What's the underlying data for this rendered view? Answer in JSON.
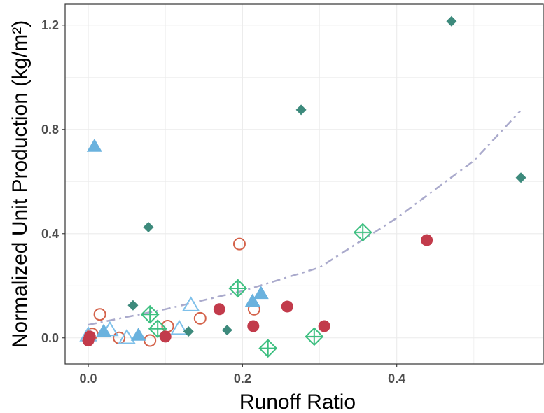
{
  "chart_data": {
    "type": "scatter",
    "xlabel": "Runoff Ratio",
    "ylabel": "Normalized Unit Production (kg/m²)",
    "xlim": [
      -0.03,
      0.59
    ],
    "ylim": [
      -0.1,
      1.28
    ],
    "x_ticks": [
      0.0,
      0.2,
      0.4
    ],
    "x_tick_labels": [
      "0.0",
      "0.2",
      "0.4"
    ],
    "y_ticks": [
      0.0,
      0.4,
      0.8,
      1.2
    ],
    "y_tick_labels": [
      "0.0",
      "0.4",
      "0.8",
      "1.2"
    ],
    "grid": true,
    "legend": "none",
    "series": [
      {
        "marker": "filled-circle",
        "color": "#c23b4b",
        "points": [
          [
            0.0,
            -0.01
          ],
          [
            0.002,
            0.005
          ],
          [
            0.1,
            0.005
          ],
          [
            0.17,
            0.11
          ],
          [
            0.214,
            0.045
          ],
          [
            0.258,
            0.12
          ],
          [
            0.306,
            0.045
          ],
          [
            0.439,
            0.375
          ]
        ]
      },
      {
        "marker": "open-circle",
        "color": "#d4624a",
        "points": [
          [
            0.005,
            0.015
          ],
          [
            0.015,
            0.09
          ],
          [
            0.04,
            0.0
          ],
          [
            0.08,
            -0.01
          ],
          [
            0.103,
            0.045
          ],
          [
            0.145,
            0.075
          ],
          [
            0.196,
            0.36
          ],
          [
            0.215,
            0.11
          ]
        ]
      },
      {
        "marker": "filled-diamond",
        "color": "#3d8a7c",
        "points": [
          [
            0.058,
            0.125
          ],
          [
            0.078,
            0.425
          ],
          [
            0.13,
            0.025
          ],
          [
            0.18,
            0.03
          ],
          [
            0.276,
            0.875
          ],
          [
            0.471,
            1.215
          ],
          [
            0.561,
            0.615
          ]
        ]
      },
      {
        "marker": "crossed-diamond",
        "color": "#3dbf80",
        "points": [
          [
            0.08,
            0.09
          ],
          [
            0.09,
            0.035
          ],
          [
            0.194,
            0.19
          ],
          [
            0.233,
            -0.04
          ],
          [
            0.293,
            0.005
          ],
          [
            0.356,
            0.405
          ]
        ]
      },
      {
        "marker": "filled-triangle",
        "color": "#6ab2de",
        "points": [
          [
            0.008,
            0.735
          ],
          [
            0.02,
            0.025
          ],
          [
            0.065,
            0.01
          ],
          [
            0.213,
            0.14
          ],
          [
            0.224,
            0.17
          ]
        ]
      },
      {
        "marker": "open-triangle",
        "color": "#7ec0ea",
        "points": [
          [
            0.0,
            0.01
          ],
          [
            0.028,
            0.03
          ],
          [
            0.05,
            0.0
          ],
          [
            0.118,
            0.035
          ],
          [
            0.133,
            0.125
          ]
        ]
      }
    ],
    "trend_line": {
      "style": "dash-dot",
      "color": "#aaaacc",
      "points": [
        [
          0.0,
          0.05
        ],
        [
          0.1,
          0.11
        ],
        [
          0.2,
          0.18
        ],
        [
          0.3,
          0.27
        ],
        [
          0.4,
          0.46
        ],
        [
          0.45,
          0.57
        ],
        [
          0.5,
          0.68
        ],
        [
          0.56,
          0.87
        ]
      ]
    }
  }
}
